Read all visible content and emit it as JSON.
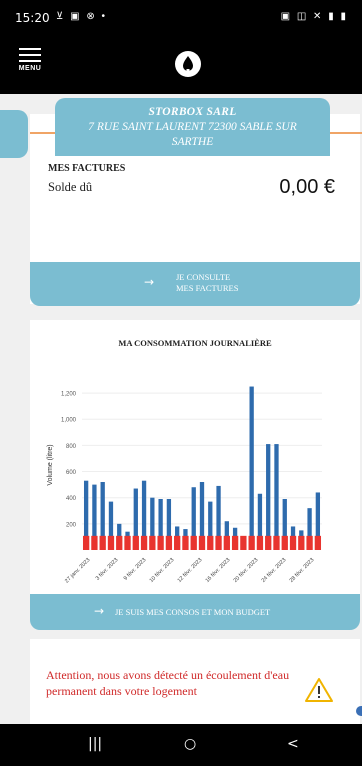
{
  "status_bar": {
    "time": "15:20",
    "left_icons": "⊻ ▣ ⊗ •",
    "right_icons": "▣ ◫ ✕ ▮ ▮"
  },
  "header": {
    "menu_label": "MENU",
    "logo_icon": "water-drop-logo-icon"
  },
  "address": {
    "name": "STORBOX SARL",
    "line1": "7 RUE SAINT LAURENT 72300 SABLE SUR",
    "line2": "SARTHE"
  },
  "invoices": {
    "title": "MES FACTURES",
    "balance_label": "Solde dû",
    "balance_value": "0,00 €",
    "button_line1": "JE CONSULTE",
    "button_line2": "MES FACTURES",
    "button_arrow": "→"
  },
  "consumption": {
    "title": "MA CONSOMMATION JOURNALIÈRE",
    "button_label": "JE SUIS MES CONSOS ET MON BUDGET",
    "button_arrow": "→"
  },
  "alert": {
    "text": "Attention, nous avons détecté un écoulement d'eau permanent dans votre logement",
    "icon": "warning-triangle-icon"
  },
  "nav": {
    "recent": "|||",
    "home": "○",
    "back": "<"
  },
  "colors": {
    "accent_blue": "#7bbdd1",
    "bar_blue": "#2e6bad",
    "bar_red": "#e8342f",
    "alert_red": "#d02a2a",
    "orange_line": "#f0a466"
  },
  "chart_data": {
    "type": "bar",
    "ylabel": "Volume (litre)",
    "ylim": [
      0,
      1300
    ],
    "yticks": [
      200,
      400,
      600,
      800,
      "1,000",
      "1,200"
    ],
    "xtick_labels": [
      "27 janv. 2023",
      "3 févr. 2023",
      "9 févr. 2023",
      "10 févr. 2023",
      "12 févr. 2023",
      "16 févr. 2023",
      "20 févr. 2023",
      "24 févr. 2023",
      "28 févr. 2023"
    ],
    "series": [
      {
        "values": [
          530,
          500,
          520,
          370,
          200,
          140,
          470,
          530,
          400,
          390,
          390,
          180,
          160,
          480,
          520,
          370,
          490,
          220,
          170,
          80,
          1250,
          430,
          810,
          810,
          390,
          180,
          150,
          320,
          440
        ]
      },
      {
        "values": [
          70,
          70,
          70,
          70,
          70,
          70,
          70,
          70,
          70,
          70,
          70,
          70,
          70,
          70,
          70,
          70,
          70,
          70,
          70,
          70,
          70,
          70,
          70,
          70,
          70,
          70,
          70,
          70,
          70
        ]
      }
    ]
  }
}
